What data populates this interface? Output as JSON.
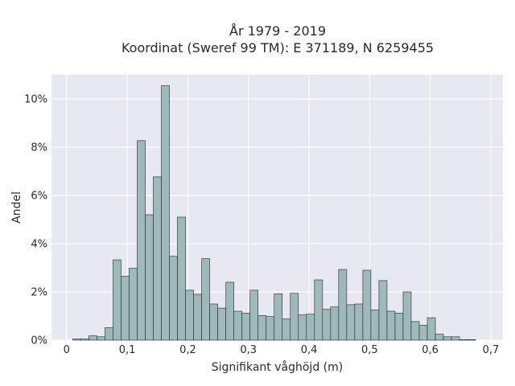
{
  "chart_data": {
    "type": "bar",
    "title_line1": "År 1979 - 2019",
    "title_line2": "Koordinat (Sweref 99 TM): E 371189, N 6259455",
    "xlabel": "Signifikant våghöjd (m)",
    "ylabel": "Andel",
    "xlim": [
      -0.025,
      0.72
    ],
    "ylim": [
      0,
      11
    ],
    "x_ticks": [
      0,
      0.1,
      0.2,
      0.3,
      0.4,
      0.5,
      0.6,
      0.7
    ],
    "x_tick_labels": [
      "0",
      "0,1",
      "0,2",
      "0,3",
      "0,4",
      "0,5",
      "0,6",
      "0,7"
    ],
    "y_ticks": [
      0,
      2,
      4,
      6,
      8,
      10
    ],
    "y_tick_labels": [
      "0%",
      "2%",
      "4%",
      "6%",
      "8%",
      "10%"
    ],
    "bin_width": 0.0133,
    "bin_start": 0.01,
    "values": [
      0.05,
      0.05,
      0.18,
      0.14,
      0.52,
      3.33,
      2.65,
      2.98,
      8.27,
      5.2,
      6.77,
      10.55,
      3.48,
      5.1,
      2.07,
      1.9,
      3.38,
      1.5,
      1.33,
      2.4,
      1.2,
      1.12,
      2.07,
      1.02,
      0.98,
      1.92,
      0.88,
      1.94,
      1.05,
      1.08,
      2.5,
      1.28,
      1.38,
      2.93,
      1.47,
      1.5,
      2.9,
      1.25,
      2.47,
      1.2,
      1.12,
      2.0,
      0.77,
      0.62,
      0.93,
      0.25,
      0.14,
      0.14,
      0.02,
      0.02
    ],
    "bar_color": "#9fb8b8",
    "bar_edge_color": "#1e2a2a",
    "plot_background": "#e8e8f0",
    "grid": true
  }
}
